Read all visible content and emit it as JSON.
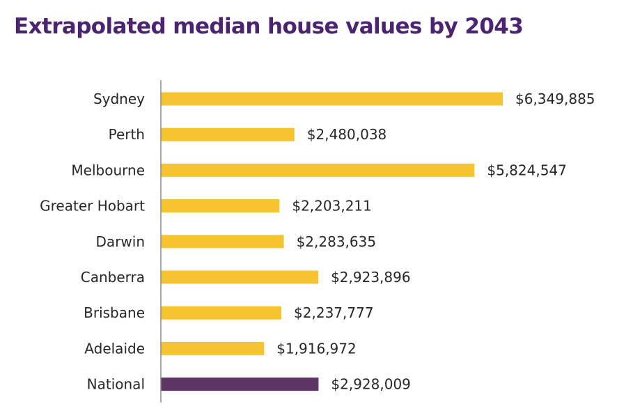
{
  "title": "Extrapolated median house values by 2043",
  "colors": {
    "title": "#4b2371",
    "bar": "#f6c431",
    "highlight_bar": "#5c3566",
    "axis": "#8c8c8c",
    "text": "#262626"
  },
  "chart_data": {
    "type": "bar",
    "orientation": "horizontal",
    "title": "Extrapolated median house values by 2043",
    "xlabel": "",
    "ylabel": "",
    "grid": false,
    "legend": "none",
    "xlim": [
      0,
      6700000
    ],
    "categories": [
      "Sydney",
      "Perth",
      "Melbourne",
      "Greater Hobart",
      "Darwin",
      "Canberra",
      "Brisbane",
      "Adelaide",
      "National"
    ],
    "values": [
      6349885,
      2480038,
      5824547,
      2203211,
      2283635,
      2923896,
      2237777,
      1916972,
      2928009
    ],
    "value_labels": [
      "$6,349,885",
      "$2,480,038",
      "$5,824,547",
      "$2,203,211",
      "$2,283,635",
      "$2,923,896",
      "$2,237,777",
      "$1,916,972",
      "$2,928,009"
    ],
    "highlight_category": "National"
  }
}
